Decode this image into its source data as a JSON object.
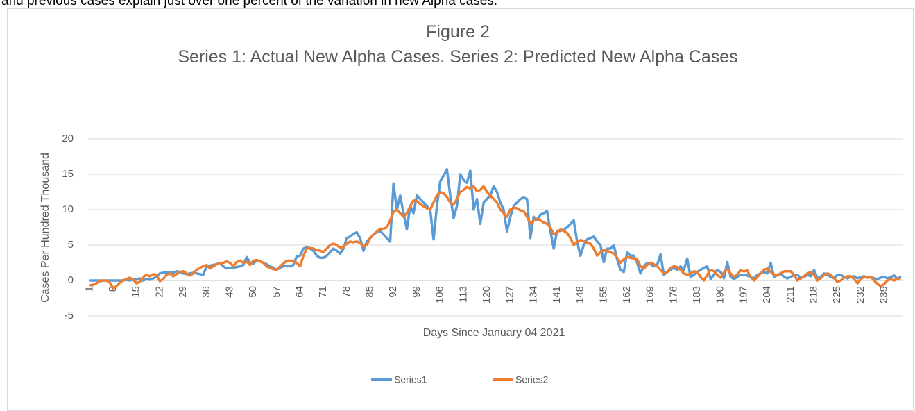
{
  "paragraph": "and previous cases explain just over one percent of the variation in new Alpha cases.",
  "chart_data": {
    "type": "line",
    "title": "Figure 2",
    "subtitle": "Series 1: Actual New Alpha Cases. Series 2: Predicted New Alpha Cases",
    "x_label": "Days Since January 04 2021",
    "y_label": "Cases Per Hundred Thousand",
    "x": [
      1,
      2,
      3,
      4,
      5,
      6,
      7,
      8,
      9,
      10,
      11,
      12,
      13,
      14,
      15,
      16,
      17,
      18,
      19,
      20,
      21,
      22,
      23,
      24,
      25,
      26,
      27,
      28,
      29,
      30,
      31,
      32,
      33,
      34,
      35,
      36,
      37,
      38,
      39,
      40,
      41,
      42,
      43,
      44,
      45,
      46,
      47,
      48,
      49,
      50,
      51,
      52,
      53,
      54,
      55,
      56,
      57,
      58,
      59,
      60,
      61,
      62,
      63,
      64,
      65,
      66,
      67,
      68,
      69,
      70,
      71,
      72,
      73,
      74,
      75,
      76,
      77,
      78,
      79,
      80,
      81,
      82,
      83,
      84,
      85,
      86,
      87,
      88,
      89,
      90,
      91,
      92,
      93,
      94,
      95,
      96,
      97,
      98,
      99,
      100,
      101,
      102,
      103,
      104,
      105,
      106,
      107,
      108,
      109,
      110,
      111,
      112,
      113,
      114,
      115,
      116,
      117,
      118,
      119,
      120,
      121,
      122,
      123,
      124,
      125,
      126,
      127,
      128,
      129,
      130,
      131,
      132,
      133,
      134,
      135,
      136,
      137,
      138,
      139,
      140,
      141,
      142,
      143,
      144,
      145,
      146,
      147,
      148,
      149,
      150,
      151,
      152,
      153,
      154,
      155,
      156,
      157,
      158,
      159,
      160,
      161,
      162,
      163,
      164,
      165,
      166,
      167,
      168,
      169,
      170,
      171,
      172,
      173,
      174,
      175,
      176,
      177,
      178,
      179,
      180,
      181,
      182,
      183,
      184,
      185,
      186,
      187,
      188,
      189,
      190,
      191,
      192,
      193,
      194,
      195,
      196,
      197,
      198,
      199,
      200,
      201,
      202,
      203,
      204,
      205,
      206,
      207,
      208,
      209,
      210,
      211,
      212,
      213,
      214,
      215,
      216,
      217,
      218,
      219,
      220,
      221,
      222,
      223,
      224,
      225,
      226,
      227,
      228,
      229,
      230,
      231,
      232,
      233,
      234,
      235,
      236,
      237,
      238,
      239,
      240,
      241,
      242,
      243,
      244
    ],
    "xlim": [
      0.5,
      244.5
    ],
    "xticks": [
      1,
      8,
      15,
      22,
      29,
      36,
      43,
      50,
      57,
      64,
      71,
      78,
      85,
      92,
      99,
      106,
      113,
      120,
      127,
      134,
      141,
      148,
      155,
      162,
      169,
      176,
      183,
      190,
      197,
      204,
      211,
      218,
      225,
      232,
      239
    ],
    "ylim": [
      -5,
      20
    ],
    "yticks": [
      -5,
      0,
      5,
      10,
      15,
      20
    ],
    "grid": true,
    "legend": "bottom",
    "series": [
      {
        "name": "Series1",
        "color": "#5b9bd5",
        "values": [
          0,
          0,
          0,
          0,
          0,
          0,
          0,
          0,
          0,
          0,
          0,
          0.1,
          0,
          0.2,
          0.1,
          0.3,
          0,
          0.2,
          0.1,
          0.3,
          0.5,
          1.0,
          1.1,
          1.1,
          1.2,
          1.1,
          1.3,
          1.2,
          1.0,
          0.9,
          1.0,
          1.1,
          1.0,
          0.9,
          0.8,
          2.0,
          2.1,
          2.2,
          2.3,
          2.5,
          2.0,
          1.7,
          1.8,
          1.8,
          1.9,
          2.0,
          2.2,
          3.3,
          2.5,
          2.4,
          2.8,
          2.7,
          2.5,
          2.3,
          2.0,
          1.8,
          1.5,
          1.8,
          2.0,
          2.1,
          2.0,
          2.2,
          3.4,
          3.5,
          4.5,
          4.7,
          4.5,
          4.2,
          3.5,
          3.2,
          3.2,
          3.5,
          4.0,
          4.5,
          4.2,
          3.8,
          4.5,
          6.0,
          6.2,
          6.6,
          6.8,
          6.0,
          4.2,
          5.5,
          6.0,
          6.5,
          6.8,
          7.0,
          6.5,
          6.0,
          5.5,
          13.7,
          10.0,
          12.0,
          9.5,
          7.2,
          10.5,
          9.5,
          12.0,
          11.5,
          11.0,
          10.5,
          10.0,
          5.8,
          10.5,
          14.0,
          14.8,
          15.7,
          12.0,
          8.8,
          10.5,
          15.0,
          14.2,
          13.8,
          15.5,
          10.0,
          11.5,
          8.0,
          11.0,
          11.5,
          12.0,
          13.3,
          12.5,
          11.0,
          10.0,
          6.9,
          9.0,
          10.5,
          11.0,
          11.5,
          11.7,
          11.5,
          6.0,
          9.0,
          8.5,
          9.3,
          9.5,
          9.8,
          7.0,
          4.5,
          7.0,
          7.0,
          7.2,
          7.5,
          8.0,
          8.5,
          5.5,
          3.5,
          5.0,
          5.8,
          6.0,
          6.2,
          5.5,
          5.0,
          2.6,
          4.5,
          4.5,
          5.0,
          3.0,
          1.5,
          1.2,
          4.0,
          3.5,
          3.5,
          2.5,
          1.0,
          2.0,
          2.5,
          2.3,
          2.0,
          2.2,
          3.7,
          0.8,
          1.2,
          1.5,
          1.8,
          1.5,
          2.0,
          1.5,
          3.1,
          0.5,
          0.8,
          1.2,
          1.5,
          1.8,
          2.0,
          0.2,
          0.8,
          1.5,
          1.2,
          0.3,
          2.6,
          0.5,
          0.2,
          0.5,
          0.8,
          0.8,
          0.7,
          0.5,
          0.3,
          0.8,
          1.0,
          1.2,
          1.0,
          2.5,
          0.5,
          0.8,
          1.0,
          0.5,
          0.3,
          0.5,
          0.8,
          0.8,
          0.3,
          0.5,
          0.8,
          0.6,
          1.5,
          0.3,
          0.5,
          1.0,
          0.8,
          0.5,
          0.3,
          0.8,
          0.8,
          0.5,
          0.3,
          0.5,
          0.6,
          0.3,
          0.5,
          0.6,
          0.4,
          0.5,
          0.3,
          0.2,
          0.4,
          0.5,
          0.3,
          0.5,
          0.7,
          0.2,
          0.6
        ]
      },
      {
        "name": "Series2",
        "color": "#ed7d31",
        "values": [
          -0.7,
          -0.6,
          -0.4,
          -0.1,
          0,
          0,
          -0.3,
          -1.1,
          -0.8,
          -0.3,
          0,
          0.2,
          0.4,
          0.1,
          -0.4,
          -0.2,
          0.5,
          0.8,
          0.6,
          0.9,
          0.8,
          -0.1,
          0.2,
          0.8,
          1.0,
          0.6,
          0.9,
          1.2,
          1.3,
          1.0,
          0.7,
          1.0,
          1.5,
          1.8,
          2.0,
          2.2,
          1.7,
          2.0,
          2.3,
          2.4,
          2.5,
          2.7,
          2.5,
          2.0,
          2.6,
          2.8,
          2.5,
          2.7,
          2.2,
          2.8,
          2.9,
          2.7,
          2.5,
          2.0,
          1.8,
          1.6,
          1.5,
          2.0,
          2.4,
          2.8,
          2.8,
          2.8,
          2.5,
          2.0,
          3.5,
          4.5,
          4.6,
          4.5,
          4.3,
          4.2,
          4.0,
          4.5,
          5.0,
          5.2,
          5.0,
          4.6,
          4.7,
          5.2,
          5.5,
          5.4,
          5.5,
          5.3,
          4.8,
          5.0,
          6.0,
          6.5,
          6.9,
          7.3,
          7.3,
          7.5,
          8.5,
          9.7,
          10.0,
          9.5,
          9.0,
          9.5,
          10.5,
          11.3,
          11.2,
          10.8,
          10.5,
          10.2,
          10.0,
          11.0,
          12.0,
          12.5,
          12.3,
          11.8,
          11.0,
          10.7,
          11.5,
          12.5,
          12.8,
          13.2,
          13.0,
          13.3,
          12.6,
          12.8,
          13.3,
          12.5,
          12.0,
          11.5,
          11.0,
          10.0,
          9.5,
          9.0,
          10.0,
          10.3,
          10.2,
          9.9,
          9.8,
          9.0,
          8.0,
          8.5,
          8.7,
          8.5,
          8.2,
          8.0,
          7.5,
          6.5,
          6.8,
          7.2,
          7.0,
          6.7,
          6.0,
          5.0,
          5.5,
          5.7,
          5.6,
          5.3,
          5.2,
          4.5,
          3.5,
          4.0,
          4.3,
          4.2,
          4.0,
          3.8,
          3.2,
          2.5,
          3.0,
          3.3,
          3.2,
          3.1,
          3.0,
          2.0,
          1.7,
          2.2,
          2.5,
          2.3,
          2.0,
          1.5,
          1.0,
          1.2,
          1.8,
          2.0,
          1.9,
          1.5,
          1.0,
          0.8,
          1.0,
          1.3,
          1.2,
          0.5,
          0.0,
          0.8,
          1.5,
          1.3,
          0.8,
          0.4,
          1.2,
          1.6,
          1.0,
          0.5,
          0.9,
          1.4,
          1.3,
          1.4,
          0.5,
          0.0,
          0.5,
          1.0,
          1.5,
          1.7,
          1.2,
          0.8,
          0.7,
          1.0,
          1.3,
          1.3,
          1.3,
          0.8,
          0.0,
          0.3,
          0.6,
          1.0,
          1.2,
          0.8,
          0.0,
          0.3,
          0.8,
          1.0,
          0.8,
          0.3,
          -0.2,
          0.0,
          0.4,
          0.6,
          0.6,
          0.2,
          -0.4,
          0.2,
          0.5,
          0.4,
          0.5,
          0.0,
          -0.5,
          -0.8,
          -0.5,
          0.0,
          0.2,
          0.0,
          0.3,
          0.2
        ]
      }
    ]
  }
}
